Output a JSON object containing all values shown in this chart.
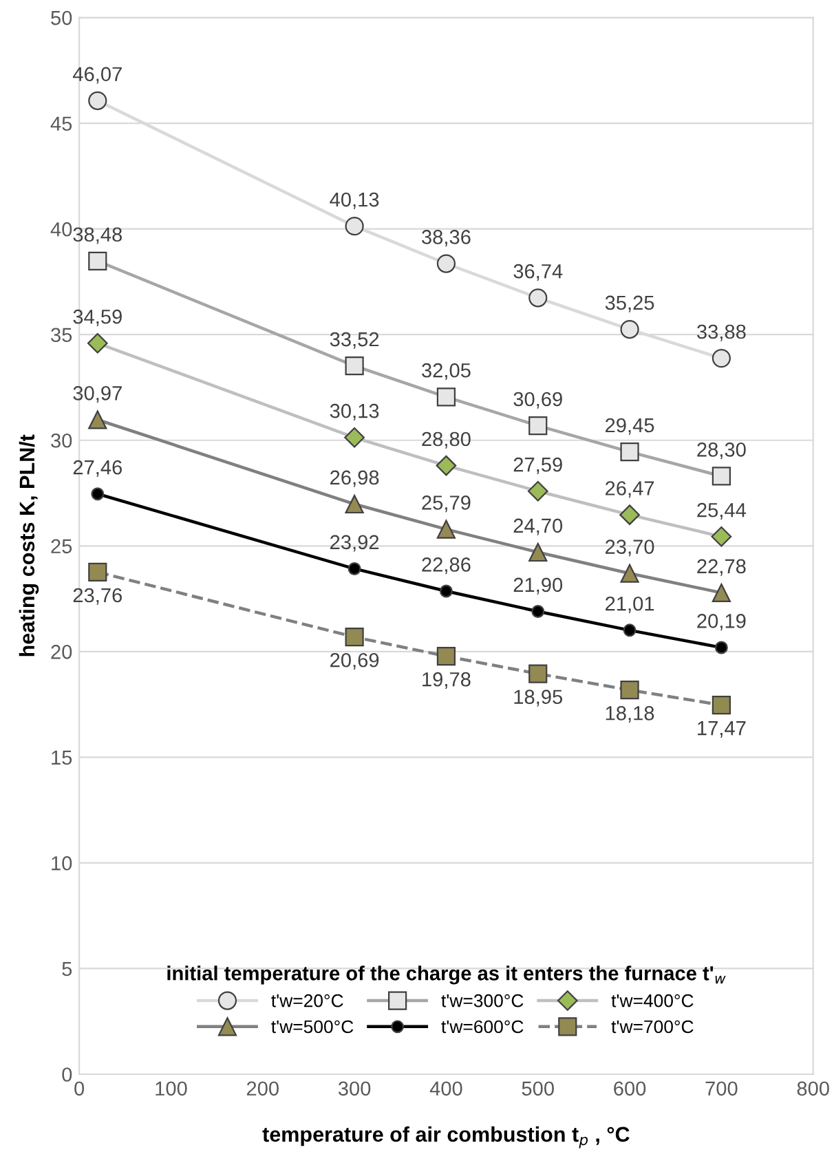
{
  "chart_data": {
    "type": "line",
    "xlabel": "temperature of air combustion t$_{p}$ , °C",
    "ylabel": "heating costs K, PLN/t",
    "legend_title": "initial temperature of the charge as it enters the furnace t'$_{w}$",
    "x": [
      20,
      300,
      400,
      500,
      600,
      700
    ],
    "series": [
      {
        "name": "t'w=20°C",
        "color": "#d9d9d9",
        "marker": "circle",
        "line_style": "solid",
        "values": [
          46.07,
          40.13,
          38.36,
          36.74,
          35.25,
          33.88
        ],
        "value_labels": [
          "46,07",
          "40,13",
          "38,36",
          "36,74",
          "35,25",
          "33,88"
        ]
      },
      {
        "name": "t'w=300°C",
        "color": "#a6a6a6",
        "marker": "square",
        "line_style": "solid",
        "values": [
          38.48,
          33.52,
          32.05,
          30.69,
          29.45,
          28.3
        ],
        "value_labels": [
          "38,48",
          "33,52",
          "32,05",
          "30,69",
          "29,45",
          "28,30"
        ]
      },
      {
        "name": "t'w=400°C",
        "color": "#bfbfbf",
        "marker": "diamond",
        "line_style": "solid",
        "values": [
          34.59,
          30.13,
          28.8,
          27.59,
          26.47,
          25.44
        ],
        "value_labels": [
          "34,59",
          "30,13",
          "28,80",
          "27,59",
          "26,47",
          "25,44"
        ]
      },
      {
        "name": "t'w=500°C",
        "color": "#808080",
        "marker": "triangle",
        "line_style": "solid",
        "values": [
          30.97,
          26.98,
          25.79,
          24.7,
          23.7,
          22.78
        ],
        "value_labels": [
          "30,97",
          "26,98",
          "25,79",
          "24,70",
          "23,70",
          "22,78"
        ]
      },
      {
        "name": "t'w=600°C",
        "color": "#000000",
        "marker": "circle",
        "line_style": "solid",
        "values": [
          27.46,
          23.92,
          22.86,
          21.9,
          21.01,
          20.19
        ],
        "value_labels": [
          "27,46",
          "23,92",
          "22,86",
          "21,90",
          "21,01",
          "20,19"
        ]
      },
      {
        "name": "t'w=700°C",
        "color": "#808080",
        "marker": "square",
        "line_style": "dashed",
        "values": [
          23.76,
          20.69,
          19.78,
          18.95,
          18.18,
          17.47
        ],
        "value_labels": [
          "23,76",
          "20,69",
          "19,78",
          "18,95",
          "18,18",
          "17,47"
        ]
      }
    ],
    "xlim": [
      0,
      800
    ],
    "xticks": [
      0,
      100,
      200,
      300,
      400,
      500,
      600,
      700,
      800
    ],
    "ylim": [
      0,
      50
    ],
    "yticks": [
      0,
      5,
      10,
      15,
      20,
      25,
      30,
      35,
      40,
      45,
      50
    ],
    "grid": "y",
    "legend": "bottom"
  }
}
